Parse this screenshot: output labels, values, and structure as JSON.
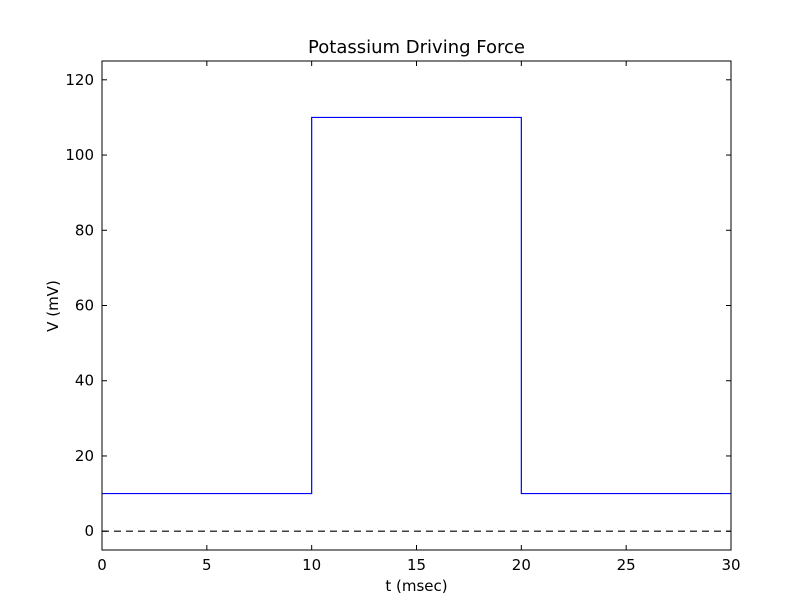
{
  "chart_data": {
    "type": "line",
    "title": "Potassium Driving Force",
    "xlabel": "t (msec)",
    "ylabel": "V (mV)",
    "xlim": [
      0,
      30
    ],
    "ylim": [
      -5,
      125
    ],
    "xticks": [
      0,
      5,
      10,
      15,
      20,
      25,
      30
    ],
    "yticks": [
      0,
      20,
      40,
      60,
      80,
      100,
      120
    ],
    "xtick_labels": [
      "0",
      "5",
      "10",
      "15",
      "20",
      "25",
      "30"
    ],
    "ytick_labels": [
      "0",
      "20",
      "40",
      "60",
      "80",
      "100",
      "120"
    ],
    "grid": false,
    "legend": "none",
    "series": [
      {
        "style": "solid",
        "color": "#0000ff",
        "x": [
          0,
          10,
          10,
          20,
          20,
          30
        ],
        "y": [
          10,
          10,
          110,
          110,
          10,
          10
        ]
      },
      {
        "style": "dashed",
        "color": "#000000",
        "x": [
          0,
          30
        ],
        "y": [
          0,
          0
        ]
      }
    ]
  }
}
